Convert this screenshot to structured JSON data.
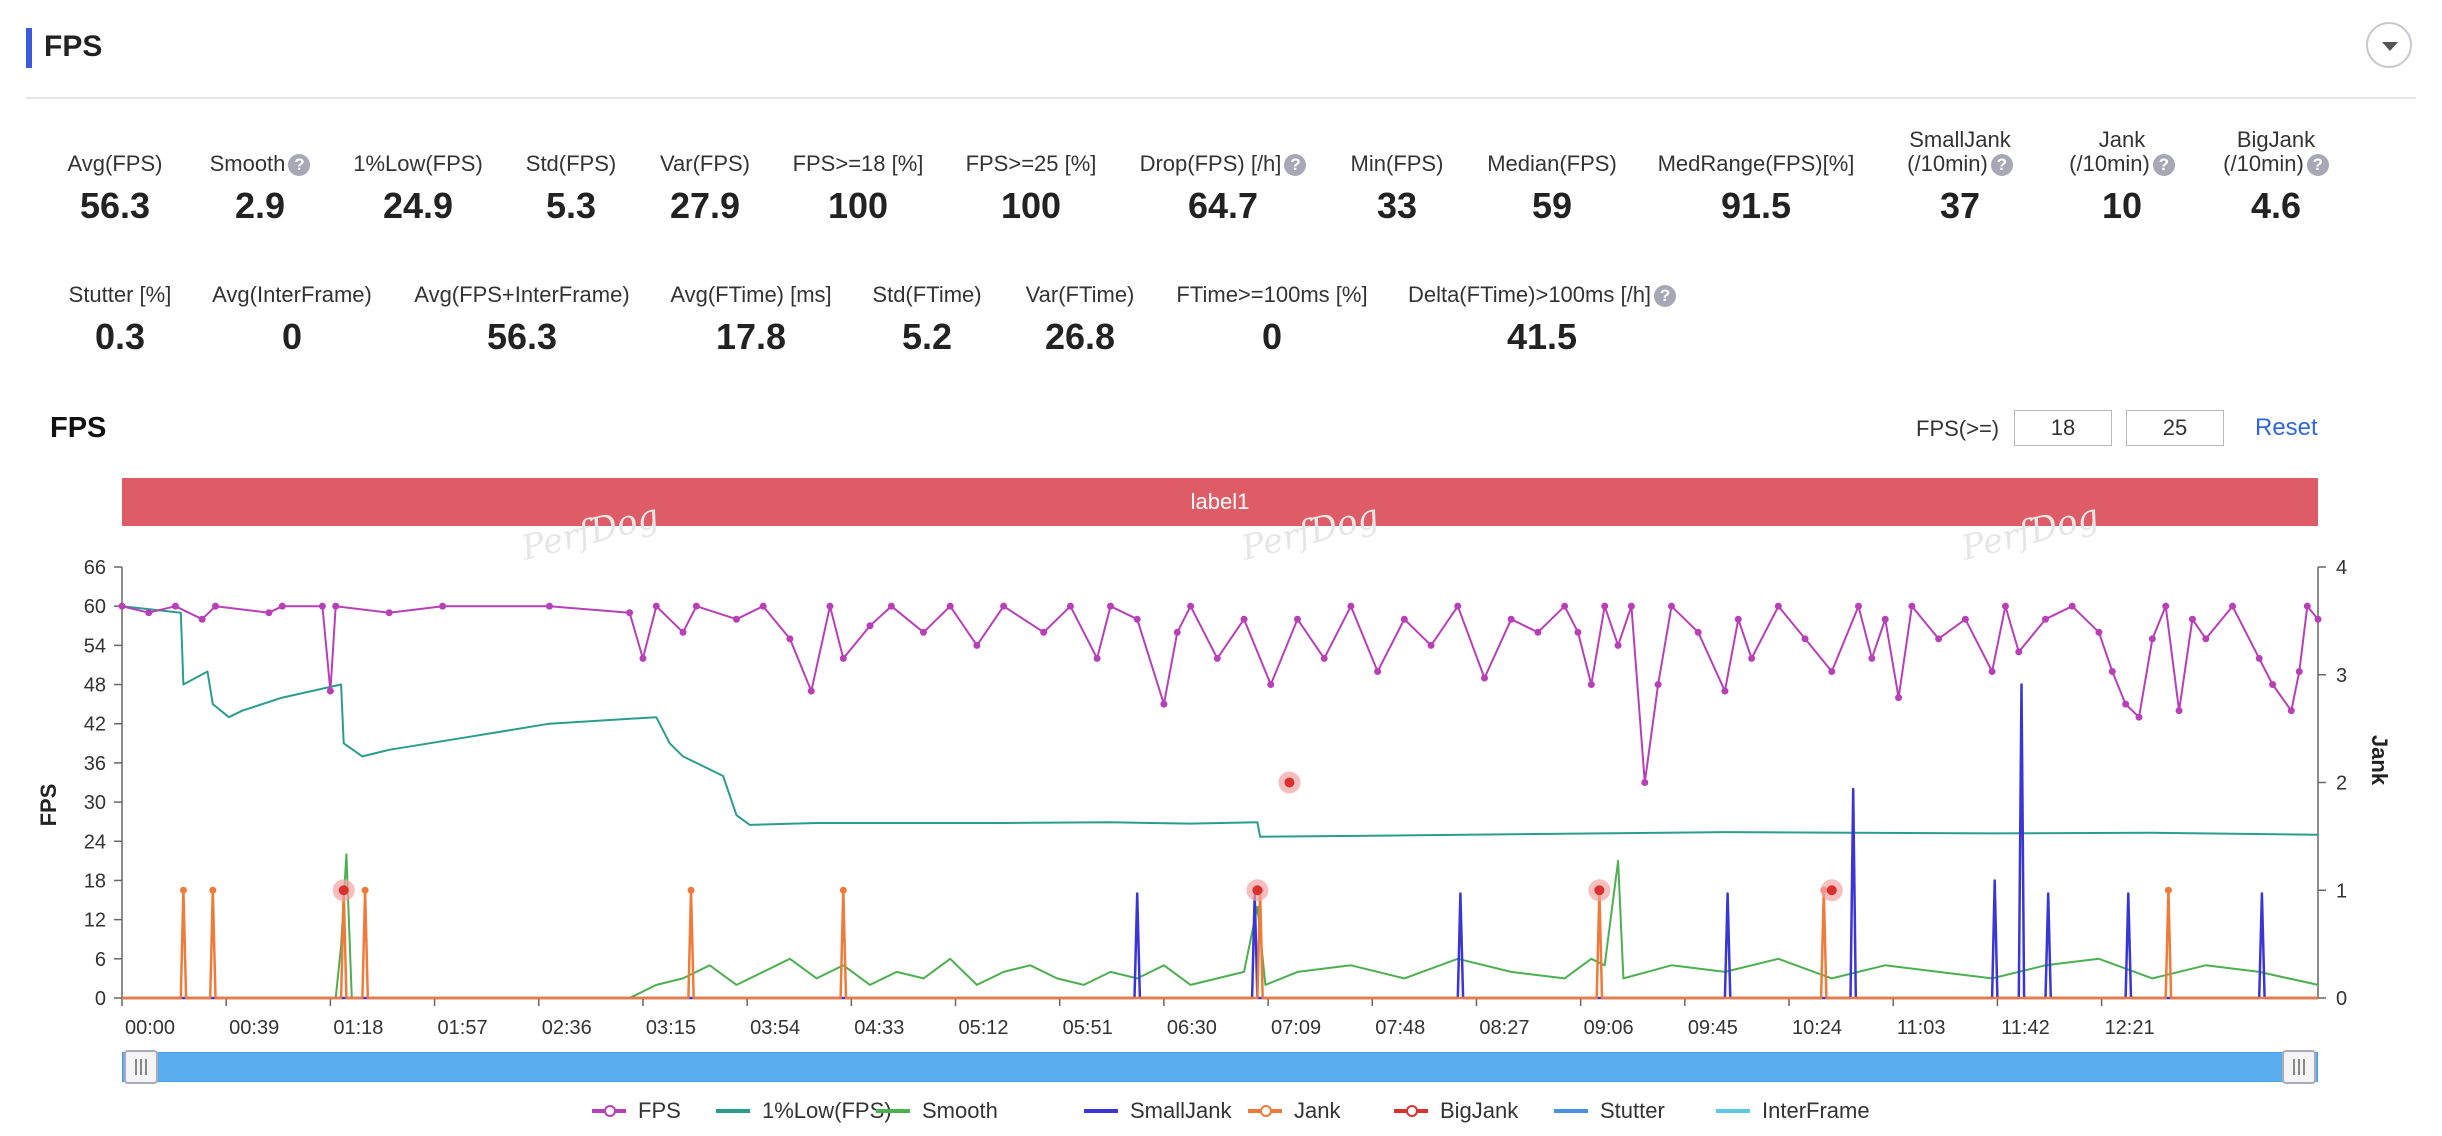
{
  "header": {
    "title": "FPS"
  },
  "stats_row1": [
    {
      "label": "Avg(FPS)",
      "value": "56.3",
      "help": false
    },
    {
      "label": "Smooth",
      "value": "2.9",
      "help": true
    },
    {
      "label": "1%Low(FPS)",
      "value": "24.9",
      "help": false
    },
    {
      "label": "Std(FPS)",
      "value": "5.3",
      "help": false
    },
    {
      "label": "Var(FPS)",
      "value": "27.9",
      "help": false
    },
    {
      "label": "FPS>=18 [%]",
      "value": "100",
      "help": false
    },
    {
      "label": "FPS>=25 [%]",
      "value": "100",
      "help": false
    },
    {
      "label": "Drop(FPS) [/h]",
      "value": "64.7",
      "help": true
    },
    {
      "label": "Min(FPS)",
      "value": "33",
      "help": false
    },
    {
      "label": "Median(FPS)",
      "value": "59",
      "help": false
    },
    {
      "label": "MedRange(FPS)[%]",
      "value": "91.5",
      "help": false
    },
    {
      "label": "SmallJank\n(/10min)",
      "value": "37",
      "help": true
    },
    {
      "label": "Jank\n(/10min)",
      "value": "10",
      "help": true
    },
    {
      "label": "BigJank\n(/10min)",
      "value": "4.6",
      "help": true
    }
  ],
  "stats_row2": [
    {
      "label": "Stutter [%]",
      "value": "0.3",
      "help": false
    },
    {
      "label": "Avg(InterFrame)",
      "value": "0",
      "help": false
    },
    {
      "label": "Avg(FPS+InterFrame)",
      "value": "56.3",
      "help": false
    },
    {
      "label": "Avg(FTime) [ms]",
      "value": "17.8",
      "help": false
    },
    {
      "label": "Std(FTime)",
      "value": "5.2",
      "help": false
    },
    {
      "label": "Var(FTime)",
      "value": "26.8",
      "help": false
    },
    {
      "label": "FTime>=100ms [%]",
      "value": "0",
      "help": false
    },
    {
      "label": "Delta(FTime)>100ms [/h]",
      "value": "41.5",
      "help": true
    }
  ],
  "chart_section": {
    "title": "FPS",
    "fps_threshold_label": "FPS(>=)",
    "threshold_1": "18",
    "threshold_2": "25",
    "reset_label": "Reset",
    "label_banner": "label1",
    "watermark": "PerfDog"
  },
  "colors": {
    "FPS": "#b83fb8",
    "Smooth": "#4caf50",
    "1%Low(FPS)": "#2a9d8f",
    "SmallJank": "#3b35d8",
    "Jank": "#ef7b3b",
    "BigJank": "#d93030",
    "Stutter": "#4a8fe8",
    "InterFrame": "#5bc8e8"
  },
  "chart_data": {
    "type": "line",
    "xlabel": "",
    "ylabel": "FPS",
    "ylabel_right": "Jank",
    "ylim": [
      0,
      66
    ],
    "ylim_right": [
      0,
      4
    ],
    "y_ticks": [
      0,
      6,
      12,
      18,
      24,
      30,
      36,
      42,
      48,
      54,
      60,
      66
    ],
    "y_ticks_right": [
      0,
      1,
      2,
      3,
      4
    ],
    "x_ticks": [
      "00:00",
      "00:39",
      "01:18",
      "01:57",
      "02:36",
      "03:15",
      "03:54",
      "04:33",
      "05:12",
      "05:51",
      "06:30",
      "07:09",
      "07:48",
      "08:27",
      "09:06",
      "09:45",
      "10:24",
      "11:03",
      "11:42",
      "12:21"
    ],
    "x_range_seconds": [
      0,
      822
    ],
    "legend_position": "bottom",
    "series": [
      {
        "name": "FPS",
        "marker": "circle",
        "points": [
          [
            0,
            60
          ],
          [
            10,
            59
          ],
          [
            20,
            60
          ],
          [
            30,
            58
          ],
          [
            35,
            60
          ],
          [
            55,
            59
          ],
          [
            60,
            60
          ],
          [
            75,
            60
          ],
          [
            78,
            47
          ],
          [
            80,
            60
          ],
          [
            100,
            59
          ],
          [
            120,
            60
          ],
          [
            160,
            60
          ],
          [
            190,
            59
          ],
          [
            195,
            52
          ],
          [
            200,
            60
          ],
          [
            210,
            56
          ],
          [
            215,
            60
          ],
          [
            230,
            58
          ],
          [
            240,
            60
          ],
          [
            250,
            55
          ],
          [
            258,
            47
          ],
          [
            265,
            60
          ],
          [
            270,
            52
          ],
          [
            280,
            57
          ],
          [
            288,
            60
          ],
          [
            300,
            56
          ],
          [
            310,
            60
          ],
          [
            320,
            54
          ],
          [
            330,
            60
          ],
          [
            345,
            56
          ],
          [
            355,
            60
          ],
          [
            365,
            52
          ],
          [
            370,
            60
          ],
          [
            380,
            58
          ],
          [
            390,
            45
          ],
          [
            395,
            56
          ],
          [
            400,
            60
          ],
          [
            410,
            52
          ],
          [
            420,
            58
          ],
          [
            430,
            48
          ],
          [
            440,
            58
          ],
          [
            450,
            52
          ],
          [
            460,
            60
          ],
          [
            470,
            50
          ],
          [
            480,
            58
          ],
          [
            490,
            54
          ],
          [
            500,
            60
          ],
          [
            510,
            49
          ],
          [
            520,
            58
          ],
          [
            530,
            56
          ],
          [
            540,
            60
          ],
          [
            545,
            56
          ],
          [
            550,
            48
          ],
          [
            555,
            60
          ],
          [
            560,
            54
          ],
          [
            565,
            60
          ],
          [
            570,
            33
          ],
          [
            575,
            48
          ],
          [
            580,
            60
          ],
          [
            590,
            56
          ],
          [
            600,
            47
          ],
          [
            605,
            58
          ],
          [
            610,
            52
          ],
          [
            620,
            60
          ],
          [
            630,
            55
          ],
          [
            640,
            50
          ],
          [
            650,
            60
          ],
          [
            655,
            52
          ],
          [
            660,
            58
          ],
          [
            665,
            46
          ],
          [
            670,
            60
          ],
          [
            680,
            55
          ],
          [
            690,
            58
          ],
          [
            700,
            50
          ],
          [
            705,
            60
          ],
          [
            710,
            53
          ],
          [
            720,
            58
          ],
          [
            730,
            60
          ],
          [
            740,
            56
          ],
          [
            745,
            50
          ],
          [
            750,
            45
          ],
          [
            755,
            43
          ],
          [
            760,
            55
          ],
          [
            765,
            60
          ],
          [
            770,
            44
          ],
          [
            775,
            58
          ],
          [
            780,
            55
          ],
          [
            790,
            60
          ],
          [
            800,
            52
          ],
          [
            805,
            48
          ],
          [
            812,
            44
          ],
          [
            815,
            50
          ],
          [
            818,
            60
          ],
          [
            822,
            58
          ]
        ]
      },
      {
        "name": "1%Low(FPS)",
        "marker": "none",
        "points": [
          [
            0,
            60
          ],
          [
            22,
            59
          ],
          [
            23,
            48
          ],
          [
            32,
            50
          ],
          [
            34,
            45
          ],
          [
            40,
            43
          ],
          [
            45,
            44
          ],
          [
            60,
            46
          ],
          [
            82,
            48
          ],
          [
            83,
            39
          ],
          [
            90,
            37
          ],
          [
            100,
            38
          ],
          [
            130,
            40
          ],
          [
            160,
            42
          ],
          [
            200,
            43
          ],
          [
            205,
            39
          ],
          [
            210,
            37
          ],
          [
            220,
            35
          ],
          [
            225,
            34
          ],
          [
            230,
            28
          ],
          [
            235,
            26.5
          ],
          [
            260,
            26.8
          ],
          [
            330,
            26.8
          ],
          [
            370,
            26.9
          ],
          [
            400,
            26.7
          ],
          [
            425,
            26.9
          ],
          [
            426,
            24.7
          ],
          [
            480,
            24.9
          ],
          [
            600,
            25.4
          ],
          [
            700,
            25.2
          ],
          [
            760,
            25.3
          ],
          [
            822,
            25.0
          ]
        ]
      },
      {
        "name": "Smooth",
        "marker": "none",
        "points": [
          [
            0,
            0
          ],
          [
            80,
            0
          ],
          [
            82,
            8
          ],
          [
            84,
            22
          ],
          [
            86,
            0
          ],
          [
            190,
            0
          ],
          [
            200,
            2
          ],
          [
            210,
            3
          ],
          [
            220,
            5
          ],
          [
            230,
            2
          ],
          [
            240,
            4
          ],
          [
            250,
            6
          ],
          [
            260,
            3
          ],
          [
            270,
            5
          ],
          [
            280,
            2
          ],
          [
            290,
            4
          ],
          [
            300,
            3
          ],
          [
            310,
            6
          ],
          [
            320,
            2
          ],
          [
            330,
            4
          ],
          [
            340,
            5
          ],
          [
            350,
            3
          ],
          [
            360,
            2
          ],
          [
            370,
            4
          ],
          [
            380,
            3
          ],
          [
            390,
            5
          ],
          [
            400,
            2
          ],
          [
            420,
            4
          ],
          [
            425,
            14
          ],
          [
            428,
            2
          ],
          [
            440,
            4
          ],
          [
            460,
            5
          ],
          [
            480,
            3
          ],
          [
            500,
            6
          ],
          [
            520,
            4
          ],
          [
            540,
            3
          ],
          [
            550,
            6
          ],
          [
            555,
            5
          ],
          [
            560,
            21
          ],
          [
            562,
            3
          ],
          [
            580,
            5
          ],
          [
            600,
            4
          ],
          [
            620,
            6
          ],
          [
            640,
            3
          ],
          [
            660,
            5
          ],
          [
            680,
            4
          ],
          [
            700,
            3
          ],
          [
            720,
            5
          ],
          [
            740,
            6
          ],
          [
            760,
            3
          ],
          [
            780,
            5
          ],
          [
            800,
            4
          ],
          [
            822,
            2
          ]
        ]
      },
      {
        "name": "SmallJank",
        "marker": "none",
        "points": [
          [
            0,
            0
          ],
          [
            379,
            0
          ],
          [
            380,
            16
          ],
          [
            381,
            0
          ],
          [
            423,
            0
          ],
          [
            424,
            16
          ],
          [
            425,
            0
          ],
          [
            500,
            0
          ],
          [
            501,
            16
          ],
          [
            502,
            0
          ],
          [
            600,
            0
          ],
          [
            601,
            16
          ],
          [
            602,
            0
          ],
          [
            647,
            0
          ],
          [
            648,
            32
          ],
          [
            649,
            0
          ],
          [
            700,
            0
          ],
          [
            701,
            18
          ],
          [
            702,
            0
          ],
          [
            710,
            0
          ],
          [
            711,
            48
          ],
          [
            712,
            0
          ],
          [
            720,
            0
          ],
          [
            721,
            16
          ],
          [
            722,
            0
          ],
          [
            750,
            0
          ],
          [
            751,
            16
          ],
          [
            752,
            0
          ],
          [
            800,
            0
          ],
          [
            801,
            16
          ],
          [
            802,
            0
          ],
          [
            822,
            0
          ]
        ]
      },
      {
        "name": "Jank",
        "marker": "circle",
        "points": [
          [
            0,
            0
          ],
          [
            22,
            0
          ],
          [
            23,
            16.5
          ],
          [
            24,
            0
          ],
          [
            33,
            0
          ],
          [
            34,
            16.5
          ],
          [
            35,
            0
          ],
          [
            82,
            0
          ],
          [
            83,
            16.5
          ],
          [
            84,
            0
          ],
          [
            90,
            0
          ],
          [
            91,
            16.5
          ],
          [
            92,
            0
          ],
          [
            212,
            0
          ],
          [
            213,
            16.5
          ],
          [
            214,
            0
          ],
          [
            269,
            0
          ],
          [
            270,
            16.5
          ],
          [
            271,
            0
          ],
          [
            425,
            0
          ],
          [
            426,
            16.5
          ],
          [
            427,
            0
          ],
          [
            552,
            0
          ],
          [
            553,
            16.5
          ],
          [
            554,
            0
          ],
          [
            636,
            0
          ],
          [
            637,
            16.5
          ],
          [
            638,
            0
          ],
          [
            765,
            0
          ],
          [
            766,
            16.5
          ],
          [
            767,
            0
          ],
          [
            822,
            0
          ]
        ]
      },
      {
        "name": "BigJank",
        "marker": "circle",
        "points": [
          [
            83,
            16.5
          ],
          [
            425,
            16.5
          ],
          [
            437,
            33
          ],
          [
            553,
            16.5
          ],
          [
            640,
            16.5
          ]
        ]
      },
      {
        "name": "Stutter",
        "marker": "none",
        "points": []
      },
      {
        "name": "InterFrame",
        "marker": "none",
        "points": []
      }
    ]
  }
}
